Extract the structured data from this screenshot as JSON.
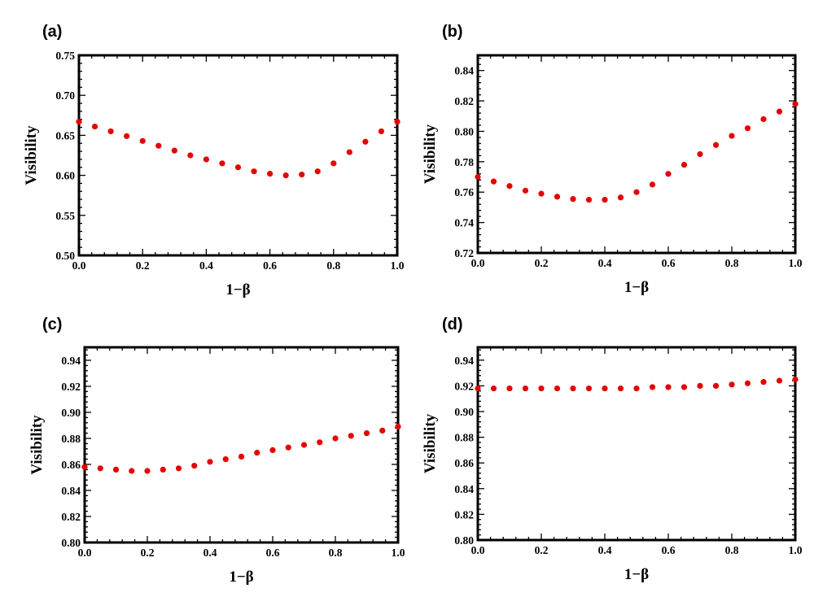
{
  "chart_data": [
    {
      "panel": "(a)",
      "type": "scatter",
      "xlabel": "1−β",
      "ylabel": "Visibility",
      "xlim": [
        0,
        1
      ],
      "ylim": [
        0.5,
        0.75
      ],
      "xticks": [
        "0.0",
        "0.2",
        "0.4",
        "0.6",
        "0.8",
        "1.0"
      ],
      "yticks": [
        "0.50",
        "0.55",
        "0.60",
        "0.65",
        "0.70",
        "0.75"
      ],
      "marker_color": "#e60000",
      "x": [
        0,
        0.05,
        0.1,
        0.15,
        0.2,
        0.25,
        0.3,
        0.35,
        0.4,
        0.45,
        0.5,
        0.55,
        0.6,
        0.65,
        0.7,
        0.75,
        0.8,
        0.85,
        0.9,
        0.95,
        1.0
      ],
      "y": [
        0.667,
        0.661,
        0.655,
        0.649,
        0.643,
        0.637,
        0.631,
        0.625,
        0.62,
        0.615,
        0.61,
        0.605,
        0.602,
        0.6,
        0.601,
        0.605,
        0.615,
        0.629,
        0.642,
        0.655,
        0.667
      ]
    },
    {
      "panel": "(b)",
      "type": "scatter",
      "xlabel": "1−β",
      "ylabel": "Visibility",
      "xlim": [
        0,
        1
      ],
      "ylim": [
        0.72,
        0.85
      ],
      "xticks": [
        "0.0",
        "0.2",
        "0.4",
        "0.6",
        "0.8",
        "1.0"
      ],
      "yticks": [
        "0.72",
        "0.74",
        "0.76",
        "0.78",
        "0.80",
        "0.82",
        "0.84"
      ],
      "marker_color": "#e60000",
      "x": [
        0,
        0.05,
        0.1,
        0.15,
        0.2,
        0.25,
        0.3,
        0.35,
        0.4,
        0.45,
        0.5,
        0.55,
        0.6,
        0.65,
        0.7,
        0.75,
        0.8,
        0.85,
        0.9,
        0.95,
        1.0
      ],
      "y": [
        0.77,
        0.767,
        0.764,
        0.761,
        0.759,
        0.757,
        0.7555,
        0.755,
        0.755,
        0.7565,
        0.76,
        0.765,
        0.772,
        0.778,
        0.785,
        0.791,
        0.797,
        0.802,
        0.808,
        0.813,
        0.818
      ]
    },
    {
      "panel": "(c)",
      "type": "scatter",
      "xlabel": "1−β",
      "ylabel": "Visibility",
      "xlim": [
        0,
        1
      ],
      "ylim": [
        0.8,
        0.95
      ],
      "xticks": [
        "0.0",
        "0.2",
        "0.4",
        "0.6",
        "0.8",
        "1.0"
      ],
      "yticks": [
        "0.80",
        "0.82",
        "0.84",
        "0.86",
        "0.88",
        "0.90",
        "0.92",
        "0.94"
      ],
      "marker_color": "#e60000",
      "x": [
        0,
        0.05,
        0.1,
        0.15,
        0.2,
        0.25,
        0.3,
        0.35,
        0.4,
        0.45,
        0.5,
        0.55,
        0.6,
        0.65,
        0.7,
        0.75,
        0.8,
        0.85,
        0.9,
        0.95,
        1.0
      ],
      "y": [
        0.858,
        0.857,
        0.856,
        0.855,
        0.855,
        0.856,
        0.857,
        0.859,
        0.862,
        0.864,
        0.866,
        0.869,
        0.871,
        0.873,
        0.875,
        0.877,
        0.88,
        0.882,
        0.884,
        0.886,
        0.889
      ]
    },
    {
      "panel": "(d)",
      "type": "scatter",
      "xlabel": "1−β",
      "ylabel": "Visibility",
      "xlim": [
        0,
        1
      ],
      "ylim": [
        0.8,
        0.95
      ],
      "xticks": [
        "0.0",
        "0.2",
        "0.4",
        "0.6",
        "0.8",
        "1.0"
      ],
      "yticks": [
        "0.80",
        "0.82",
        "0.84",
        "0.86",
        "0.88",
        "0.90",
        "0.92",
        "0.94"
      ],
      "marker_color": "#e60000",
      "x": [
        0,
        0.05,
        0.1,
        0.15,
        0.2,
        0.25,
        0.3,
        0.35,
        0.4,
        0.45,
        0.5,
        0.55,
        0.6,
        0.65,
        0.7,
        0.75,
        0.8,
        0.85,
        0.9,
        0.95,
        1.0
      ],
      "y": [
        0.918,
        0.918,
        0.918,
        0.918,
        0.918,
        0.918,
        0.918,
        0.918,
        0.918,
        0.918,
        0.918,
        0.919,
        0.919,
        0.919,
        0.92,
        0.92,
        0.921,
        0.922,
        0.923,
        0.924,
        0.925
      ]
    }
  ]
}
